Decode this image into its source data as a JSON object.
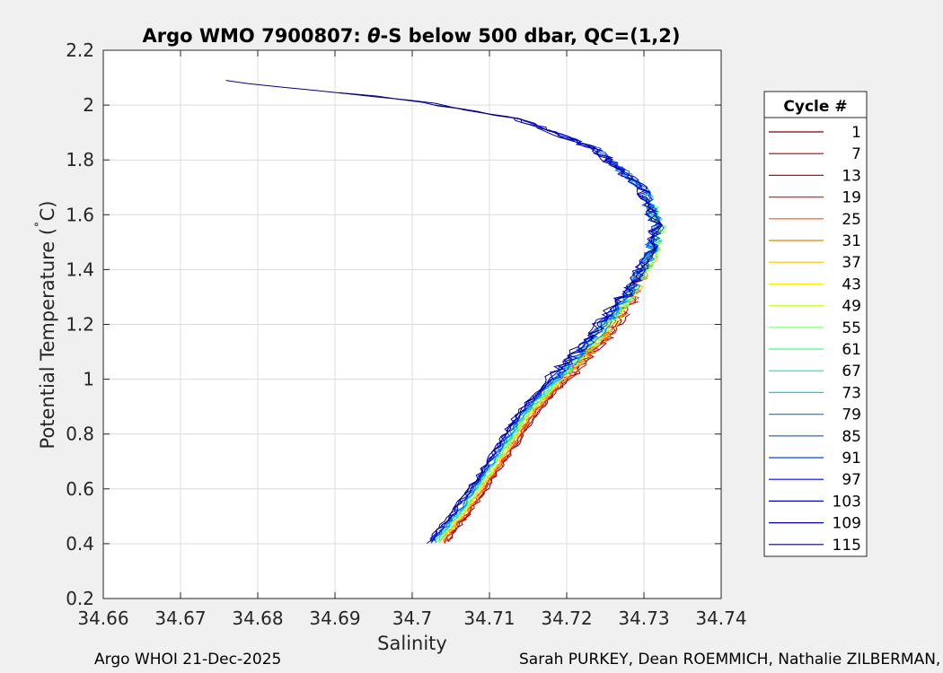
{
  "chart_data": {
    "type": "line",
    "title_prefix": "Argo WMO 7900807: ",
    "title_theta": "θ",
    "title_suffix": "-S below 500 dbar,  QC=(1,2)",
    "xlabel": "Salinity",
    "ylabel_before": "Potential Temperature (",
    "ylabel_degree": "˚",
    "ylabel_after": "C)",
    "xlim": [
      34.66,
      34.74
    ],
    "ylim": [
      0.2,
      2.2
    ],
    "xticks": [
      34.66,
      34.67,
      34.68,
      34.69,
      34.7,
      34.71,
      34.72,
      34.73,
      34.74
    ],
    "xtick_labels": [
      "34.66",
      "34.67",
      "34.68",
      "34.69",
      "34.7",
      "34.71",
      "34.72",
      "34.73",
      "34.74"
    ],
    "yticks": [
      0.2,
      0.4,
      0.6,
      0.8,
      1.0,
      1.2,
      1.4,
      1.6,
      1.8,
      2.0,
      2.2
    ],
    "ytick_labels": [
      "0.2",
      "0.4",
      "0.6",
      "0.8",
      "1",
      "1.2",
      "1.4",
      "1.6",
      "1.8",
      "2",
      "2.2"
    ],
    "grid": true,
    "legend_title": "Cycle #",
    "legend_location": "outside-right",
    "legend": [
      {
        "label": "1",
        "color": "#800000"
      },
      {
        "label": "7",
        "color": "#b00000"
      },
      {
        "label": "13",
        "color": "#e00000"
      },
      {
        "label": "19",
        "color": "#ff1a00"
      },
      {
        "label": "25",
        "color": "#ff5000"
      },
      {
        "label": "31",
        "color": "#e08a00"
      },
      {
        "label": "37",
        "color": "#ffc000"
      },
      {
        "label": "43",
        "color": "#ffee00"
      },
      {
        "label": "49",
        "color": "#c8ff30"
      },
      {
        "label": "55",
        "color": "#80ff70"
      },
      {
        "label": "61",
        "color": "#40ff80"
      },
      {
        "label": "67",
        "color": "#10e0c0"
      },
      {
        "label": "73",
        "color": "#00d0ff"
      },
      {
        "label": "79",
        "color": "#0090ff"
      },
      {
        "label": "85",
        "color": "#0060d0"
      },
      {
        "label": "91",
        "color": "#0040ff"
      },
      {
        "label": "97",
        "color": "#0000ff"
      },
      {
        "label": "103",
        "color": "#0000c8"
      },
      {
        "label": "109",
        "color": "#0000a0"
      },
      {
        "label": "115",
        "color": "#00007a"
      }
    ],
    "curve": {
      "name": "approximate θ-S curve envelope",
      "points": [
        [
          34.703,
          0.4
        ],
        [
          34.706,
          0.5
        ],
        [
          34.709,
          0.62
        ],
        [
          34.712,
          0.75
        ],
        [
          34.715,
          0.88
        ],
        [
          34.719,
          1.0
        ],
        [
          34.724,
          1.15
        ],
        [
          34.728,
          1.3
        ],
        [
          34.731,
          1.45
        ],
        [
          34.732,
          1.56
        ],
        [
          34.73,
          1.7
        ],
        [
          34.724,
          1.84
        ],
        [
          34.714,
          1.95
        ],
        [
          34.7,
          2.02
        ],
        [
          34.685,
          2.06
        ],
        [
          34.676,
          2.09
        ],
        [
          34.668,
          2.11
        ]
      ]
    }
  },
  "footer": {
    "left": "Argo WHOI 21-Dec-2025",
    "right": "Sarah PURKEY, Dean ROEMMICH, Nathalie ZILBERMAN, Jo"
  }
}
